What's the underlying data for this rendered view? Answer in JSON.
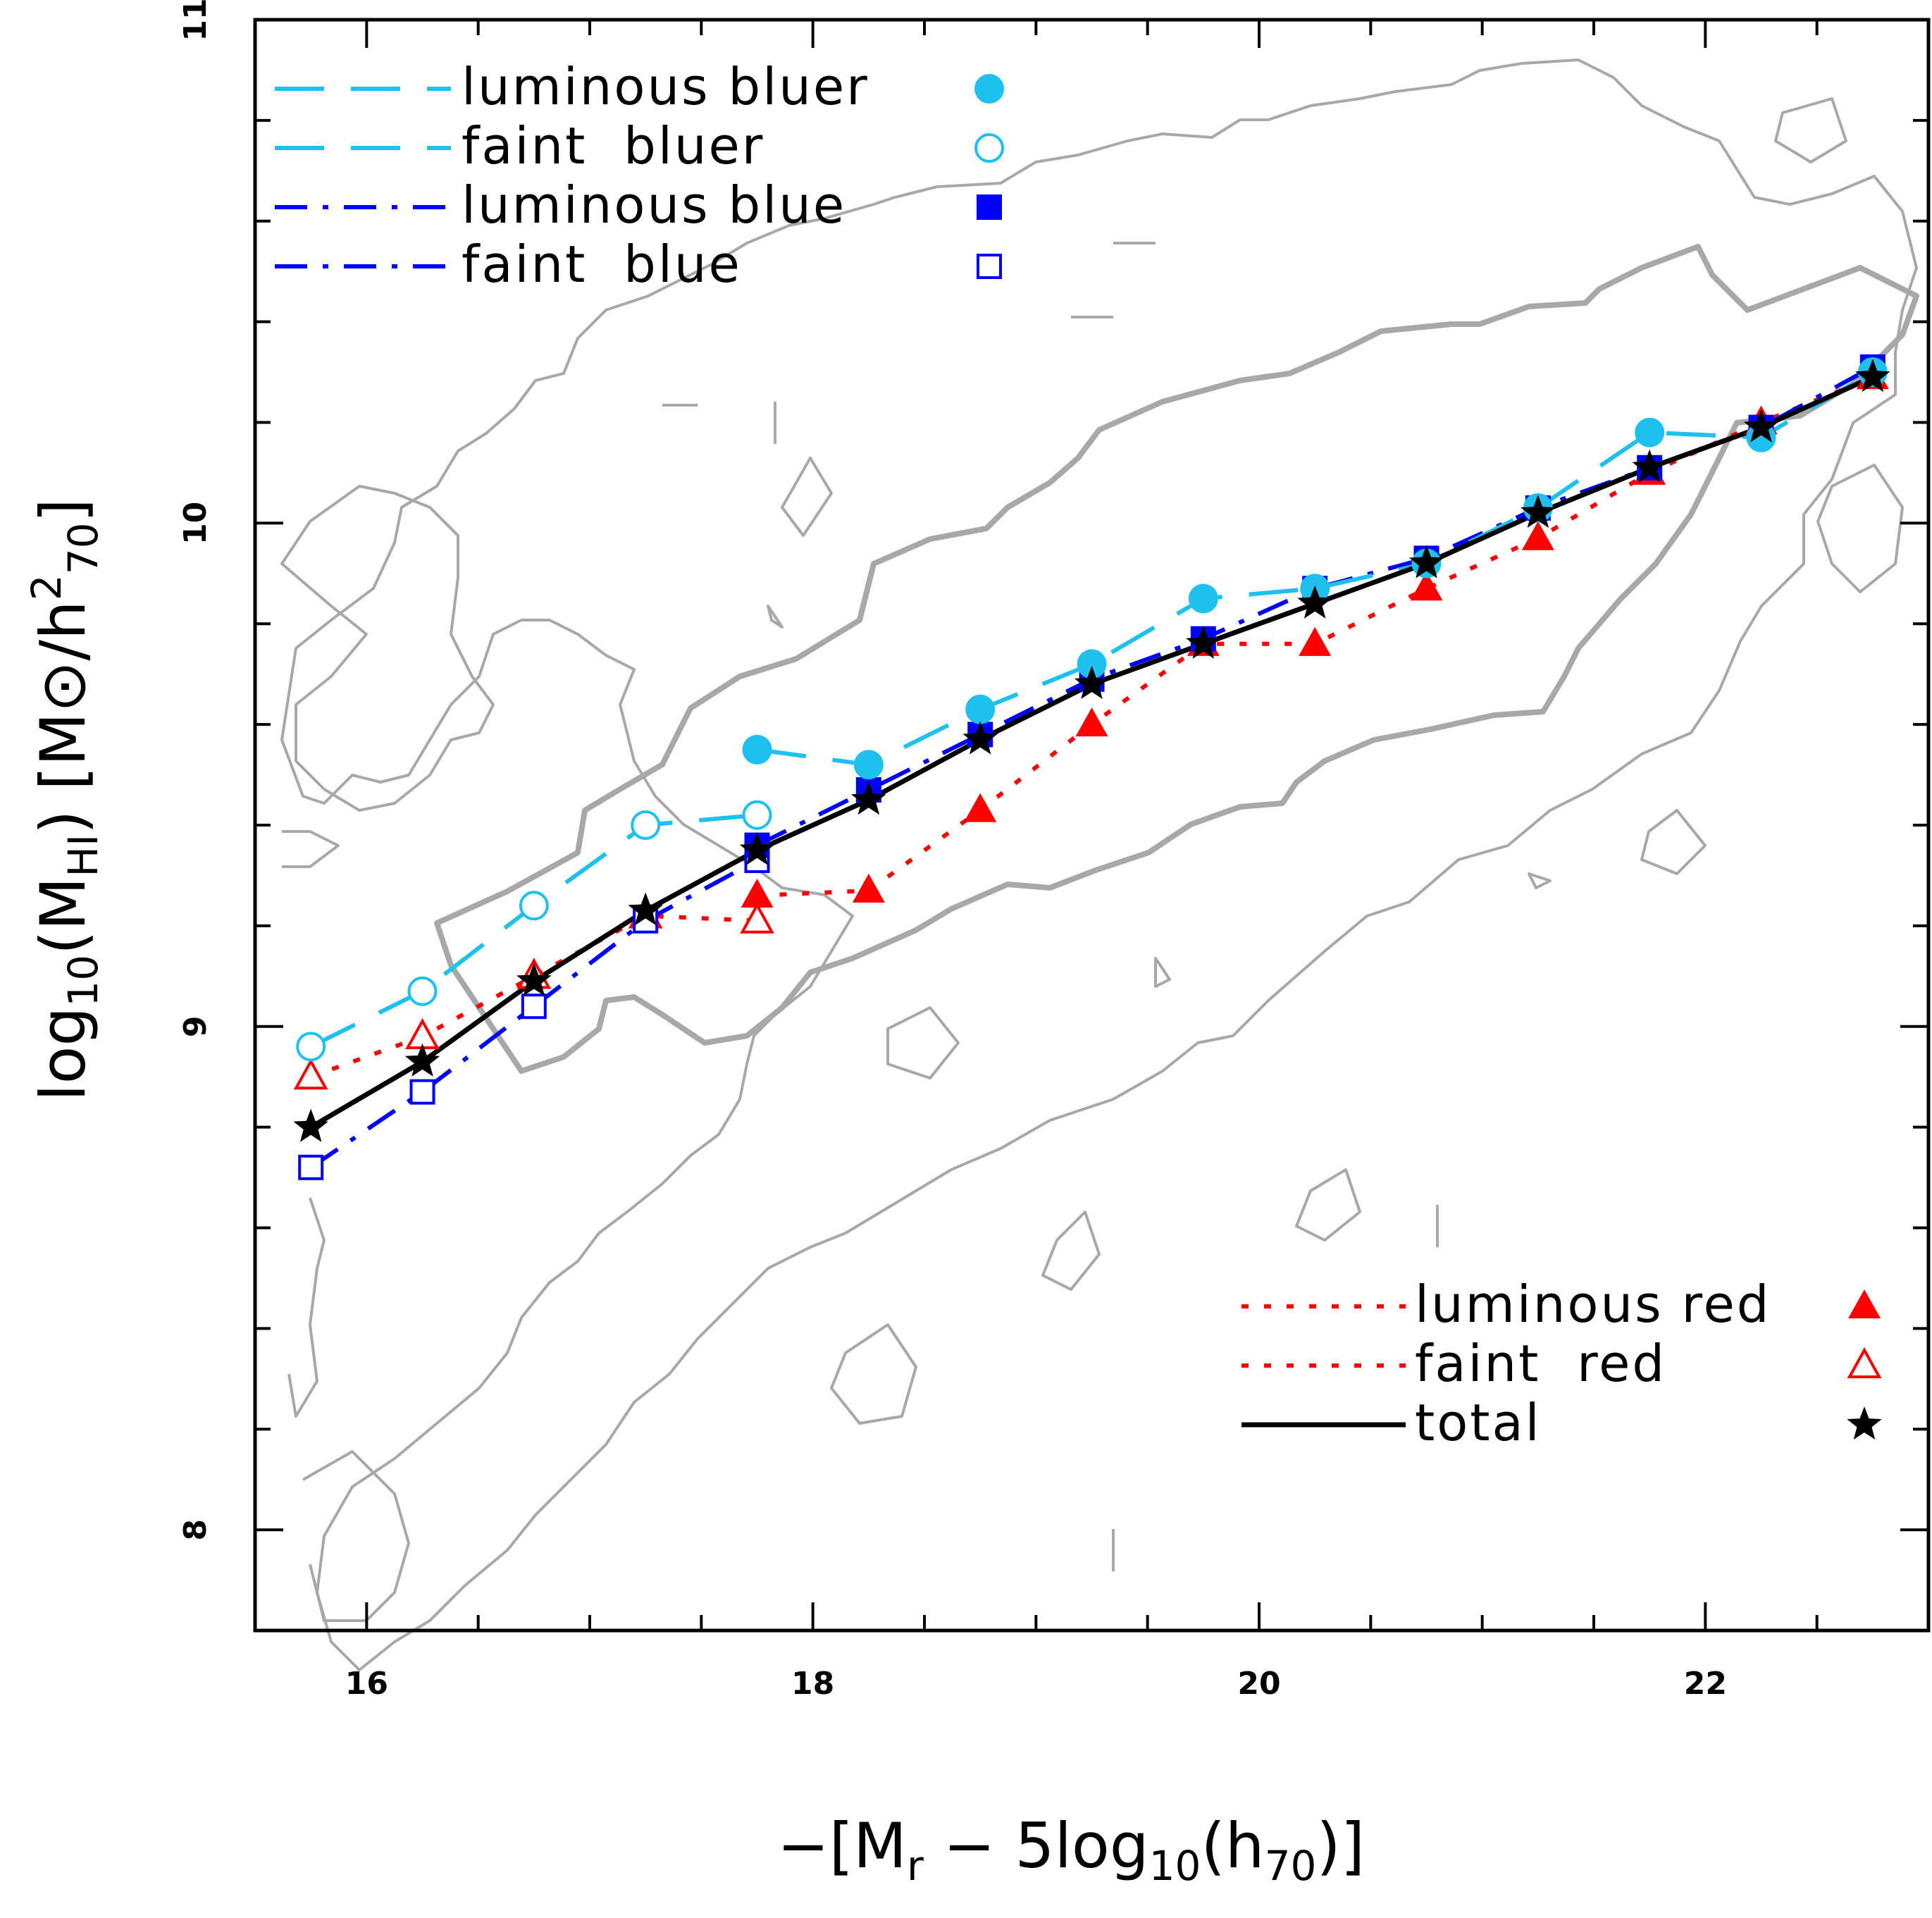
{
  "chart_data": {
    "type": "line",
    "title": "",
    "xlabel": "−[M_r − 5log10(h70)]",
    "ylabel": "log10(M_HI)   [M⊙/h²70]",
    "xlim": [
      15.5,
      23.0
    ],
    "ylim": [
      7.8,
      11.0
    ],
    "x_ticks": [
      16,
      18,
      20,
      22
    ],
    "y_ticks": [
      8,
      9,
      10,
      11
    ],
    "grid": false,
    "legend_upper": [
      {
        "name": "luminous bluer",
        "color": "#1ec0ee",
        "marker": "filled-circle",
        "line": "long-dash"
      },
      {
        "name": "faint  bluer",
        "color": "#1ec0ee",
        "marker": "open-circle",
        "line": "long-dash"
      },
      {
        "name": "luminous blue",
        "color": "#0000ff",
        "marker": "filled-square",
        "line": "dash-dot"
      },
      {
        "name": "faint  blue",
        "color": "#0000ff",
        "marker": "open-square",
        "line": "dash-dot"
      }
    ],
    "legend_lower": [
      {
        "name": "luminous red",
        "color": "#ff0000",
        "marker": "filled-triangle",
        "line": "dotted"
      },
      {
        "name": "faint  red",
        "color": "#ff0000",
        "marker": "open-triangle",
        "line": "dotted"
      },
      {
        "name": "total",
        "color": "#000000",
        "marker": "star",
        "line": "solid"
      }
    ],
    "series": [
      {
        "key": "faint_bluer",
        "color": "#1ec0ee",
        "marker": "open-circle",
        "line": "long-dash",
        "x": [
          15.75,
          16.25,
          16.75,
          17.25,
          17.75
        ],
        "y": [
          8.96,
          9.07,
          9.24,
          9.4,
          9.42
        ]
      },
      {
        "key": "luminous_bluer",
        "color": "#1ec0ee",
        "marker": "filled-circle",
        "line": "long-dash",
        "x": [
          17.75,
          18.25,
          18.75,
          19.25,
          19.75,
          20.25,
          20.75,
          21.25,
          21.75,
          22.25,
          22.75
        ],
        "y": [
          9.55,
          9.52,
          9.63,
          9.72,
          9.85,
          9.87,
          9.92,
          10.03,
          10.18,
          10.17,
          10.3
        ]
      },
      {
        "key": "faint_blue",
        "color": "#0000ff",
        "marker": "open-square",
        "line": "dash-dot",
        "x": [
          15.75,
          16.25,
          16.75,
          17.25,
          17.75
        ],
        "y": [
          8.72,
          8.87,
          9.04,
          9.21,
          9.33
        ]
      },
      {
        "key": "luminous_blue",
        "color": "#0000ff",
        "marker": "filled-square",
        "line": "dash-dot",
        "x": [
          17.75,
          18.25,
          18.75,
          19.25,
          19.75,
          20.25,
          20.75,
          21.25,
          21.75,
          22.25,
          22.75
        ],
        "y": [
          9.36,
          9.47,
          9.58,
          9.69,
          9.77,
          9.87,
          9.93,
          10.03,
          10.11,
          10.19,
          10.31
        ]
      },
      {
        "key": "faint_red",
        "color": "#ff0000",
        "marker": "open-triangle",
        "line": "dotted",
        "x": [
          15.75,
          16.25,
          16.75,
          17.25,
          17.75
        ],
        "y": [
          8.9,
          8.98,
          9.1,
          9.22,
          9.21
        ]
      },
      {
        "key": "luminous_red",
        "color": "#ff0000",
        "marker": "filled-triangle",
        "line": "dotted",
        "x": [
          17.75,
          18.25,
          18.75,
          19.25,
          19.75,
          20.25,
          20.75,
          21.25,
          21.75,
          22.25,
          22.75
        ],
        "y": [
          9.26,
          9.27,
          9.43,
          9.6,
          9.76,
          9.76,
          9.87,
          9.97,
          10.1,
          10.2,
          10.29
        ]
      },
      {
        "key": "total",
        "color": "#000000",
        "marker": "star",
        "line": "solid",
        "x": [
          15.75,
          16.25,
          16.75,
          17.25,
          17.75,
          18.25,
          18.75,
          19.25,
          19.75,
          20.25,
          20.75,
          21.25,
          21.75,
          22.25,
          22.75
        ],
        "y": [
          8.8,
          8.93,
          9.09,
          9.23,
          9.35,
          9.45,
          9.57,
          9.68,
          9.76,
          9.84,
          9.92,
          10.02,
          10.11,
          10.19,
          10.29
        ]
      }
    ]
  }
}
